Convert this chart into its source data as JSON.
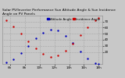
{
  "title": "Solar PV/Inverter Performance Sun Altitude Angle & Sun Incidence Angle on PV Panels",
  "title_fontsize": 3.2,
  "legend_labels": [
    "Altitude Angle",
    "Incidence Angle"
  ],
  "legend_colors": [
    "#0000bb",
    "#cc0000"
  ],
  "bg_color": "#c8c8c8",
  "plot_bg_color": "#c8c8c8",
  "grid_color": "#aaaaaa",
  "ylim": [
    0,
    80
  ],
  "yticks": [
    20,
    30,
    40,
    50,
    60,
    70
  ],
  "ylabel_fontsize": 3.0,
  "xlabel_fontsize": 3.0,
  "time_hours": [
    5.5,
    6.5,
    7.5,
    8.5,
    9.5,
    10.5,
    11.5,
    12.5,
    13.5,
    14.5,
    15.5,
    16.5,
    17.5,
    18.0
  ],
  "altitude_values": [
    2,
    8,
    18,
    30,
    42,
    52,
    57,
    55,
    47,
    35,
    21,
    9,
    1,
    0
  ],
  "incidence_values": [
    72,
    62,
    50,
    38,
    26,
    17,
    12,
    14,
    22,
    34,
    48,
    61,
    72,
    76
  ],
  "dot_size": 3,
  "altitude_color": "#0000bb",
  "incidence_color": "#cc0000",
  "xtick_positions": [
    6,
    8,
    10,
    12,
    14,
    16,
    18
  ],
  "xtick_labels": [
    "6h",
    "8h",
    "10h",
    "12h",
    "14h",
    "16h",
    "18h"
  ],
  "xlim": [
    5.0,
    18.5
  ]
}
